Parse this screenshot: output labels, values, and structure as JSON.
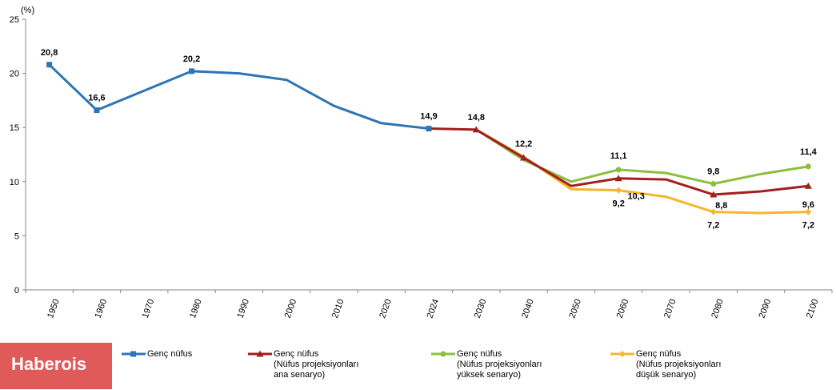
{
  "chart_data": {
    "type": "line",
    "title": "",
    "ylabel": "(%)",
    "xlabel": "",
    "ylim": [
      0,
      25
    ],
    "yticks": [
      0,
      5,
      10,
      15,
      20,
      25
    ],
    "categories": [
      "1950",
      "1960",
      "1970",
      "1980",
      "1990",
      "2000",
      "2010",
      "2020",
      "2024",
      "2030",
      "2040",
      "2050",
      "2060",
      "2070",
      "2080",
      "2090",
      "2100"
    ],
    "grid": false,
    "legend_position": "bottom",
    "series": [
      {
        "name": "Genç nüfus",
        "color": "#2e75b6",
        "marker": "square",
        "values": [
          20.8,
          16.6,
          null,
          20.2,
          20.0,
          19.4,
          17.0,
          15.4,
          14.9,
          null,
          null,
          null,
          null,
          null,
          null,
          null,
          null
        ],
        "labels": {
          "0": "20,8",
          "1": "16,6",
          "3": "20,2",
          "8": "14,9"
        }
      },
      {
        "name": "Genç nüfus (Nüfus projeksiyonları ana senaryo)",
        "color": "#a31f1f",
        "marker": "triangle",
        "values": [
          null,
          null,
          null,
          null,
          null,
          null,
          null,
          null,
          14.9,
          14.8,
          12.2,
          9.6,
          10.3,
          10.2,
          8.8,
          9.1,
          9.6
        ],
        "labels": {
          "9": "14,8",
          "10": "12,2",
          "12": "10,3",
          "14": "8,8",
          "16": "9,6"
        }
      },
      {
        "name": "Genç nüfus (Nüfus projeksiyonları yüksek senaryo)",
        "color": "#8cbf3f",
        "marker": "circle",
        "values": [
          null,
          null,
          null,
          null,
          null,
          null,
          null,
          null,
          null,
          14.8,
          12.0,
          10.0,
          11.1,
          10.8,
          9.8,
          10.7,
          11.4
        ],
        "labels": {
          "12": "11,1",
          "14": "9,8",
          "16": "11,4"
        }
      },
      {
        "name": "Genç nüfus (Nüfus projeksiyonları düşük senaryo)",
        "color": "#f2b72d",
        "marker": "diamond",
        "values": [
          null,
          null,
          null,
          null,
          null,
          null,
          null,
          null,
          null,
          14.8,
          12.3,
          9.3,
          9.2,
          8.6,
          7.2,
          7.1,
          7.2
        ],
        "labels": {
          "12": "9,2",
          "14": "7,2",
          "16": "7,2"
        }
      }
    ]
  },
  "legend": [
    {
      "lines": [
        "Genç nüfus"
      ]
    },
    {
      "lines": [
        "Genç nüfus",
        "(Nüfus projeksiyonları",
        "ana senaryo)"
      ]
    },
    {
      "lines": [
        "Genç nüfus",
        "(Nüfus projeksiyonları",
        "yüksek senaryo)"
      ]
    },
    {
      "lines": [
        "Genç nüfus",
        "(Nüfus projeksiyonları",
        "düşük senaryo)"
      ]
    }
  ],
  "watermark": "Haberois"
}
